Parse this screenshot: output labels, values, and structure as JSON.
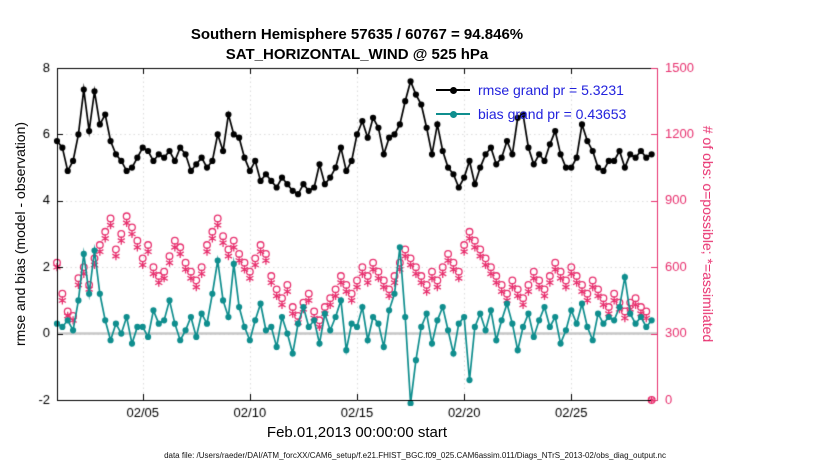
{
  "title": {
    "line1": "Southern Hemisphere 57635 / 60767 = 94.846%",
    "line2": "SAT_HORIZONTAL_WIND @ 525 hPa"
  },
  "legend": {
    "rmse": "rmse grand pr = 5.3231",
    "bias": "bias grand pr = 0.43653"
  },
  "axes": {
    "ylabel_left": "rmse and bias (model - observation)",
    "ylabel_right": "# of obs: o=possible; *=assimilated",
    "xlabel": "Feb.01,2013 00:00:00 start",
    "xtick_labels": [
      "02/05",
      "02/10",
      "02/15",
      "02/20",
      "02/25"
    ],
    "xtick_days": [
      5,
      10,
      15,
      20,
      25
    ],
    "yticks_left": [
      -2,
      0,
      2,
      4,
      6,
      8
    ],
    "yticks_right": [
      0,
      300,
      600,
      900,
      1200,
      1500
    ],
    "xlim": [
      1,
      29
    ],
    "ylim_left": [
      -2,
      8
    ],
    "ylim_right": [
      0,
      1500
    ]
  },
  "footer": {
    "datafile": "data file: /Users/raeder/DAI/ATM_forcXX/CAM6_setup/f.e21.FHIST_BGC.f09_025.CAM6assim.011/Diags_NTrS_2013-02/obs_diag_output.nc"
  },
  "colors": {
    "rmse": "#000000",
    "bias": "#0f8e8e",
    "obs": "#e8316f",
    "legend_text": "#2222dd",
    "zero_line": "#c8c8c8",
    "grid": "#dcdcdc",
    "axis": "#000000"
  },
  "chart_data": {
    "type": "line",
    "title": "Southern Hemisphere 57635 / 60767 = 94.846% | SAT_HORIZONTAL_WIND @ 525 hPa",
    "xlabel": "Feb.01,2013 00:00:00 start",
    "ylabel_left": "rmse and bias (model - observation)",
    "ylabel_right": "# of obs: o=possible; *=assimilated",
    "xlim_days": [
      1,
      29
    ],
    "ylim_left": [
      -2,
      8
    ],
    "ylim_right": [
      0,
      1500
    ],
    "grid": true,
    "legend_position": "top-right-inside",
    "x_start_day": 1.0,
    "x_step_days": 0.25,
    "series": [
      {
        "name": "rmse",
        "legend": "rmse grand pr = 5.3231",
        "axis": "left",
        "marker": "filled-circle",
        "color_key": "rmse",
        "values": [
          5.8,
          5.6,
          4.9,
          5.2,
          6.0,
          7.35,
          6.1,
          7.3,
          6.3,
          6.6,
          5.8,
          5.4,
          5.2,
          4.9,
          5.0,
          5.3,
          5.6,
          5.5,
          5.2,
          5.4,
          5.3,
          5.5,
          5.2,
          5.6,
          5.4,
          4.9,
          5.1,
          5.3,
          5.0,
          5.2,
          6.0,
          5.5,
          6.6,
          6.0,
          5.9,
          5.3,
          4.9,
          5.2,
          4.6,
          4.8,
          4.6,
          4.4,
          4.7,
          4.5,
          4.3,
          4.2,
          4.5,
          4.3,
          4.4,
          5.1,
          4.5,
          4.7,
          5.0,
          5.6,
          4.9,
          5.2,
          6.0,
          6.4,
          5.9,
          6.5,
          6.2,
          5.4,
          5.9,
          6.0,
          6.3,
          7.0,
          7.6,
          7.2,
          6.9,
          6.2,
          5.4,
          6.3,
          5.5,
          5.0,
          4.8,
          4.4,
          4.7,
          5.2,
          4.5,
          5.0,
          5.4,
          5.6,
          5.1,
          5.3,
          5.8,
          5.4,
          6.5,
          6.6,
          5.6,
          5.1,
          5.4,
          5.2,
          5.7,
          6.1,
          5.4,
          5.0,
          5.0,
          5.3,
          6.3,
          5.8,
          5.5,
          5.0,
          4.9,
          5.2,
          5.2,
          5.5,
          5.0,
          5.4,
          5.3,
          5.5,
          5.3,
          5.4
        ]
      },
      {
        "name": "bias",
        "legend": "bias grand pr = 0.43653",
        "axis": "left",
        "marker": "filled-circle",
        "color_key": "bias",
        "values": [
          0.3,
          0.2,
          0.4,
          0.1,
          1.0,
          2.4,
          1.2,
          2.5,
          1.2,
          0.4,
          -0.2,
          0.3,
          0.0,
          0.5,
          -0.3,
          0.2,
          0.2,
          -0.1,
          0.7,
          0.3,
          0.4,
          1.0,
          0.3,
          -0.2,
          0.1,
          0.5,
          -0.1,
          0.6,
          0.3,
          1.2,
          2.2,
          1.0,
          0.5,
          2.1,
          0.8,
          0.2,
          -0.2,
          0.4,
          0.9,
          0.1,
          0.2,
          -0.4,
          0.5,
          0.0,
          -0.6,
          0.3,
          0.8,
          0.2,
          0.4,
          -0.3,
          0.6,
          0.1,
          0.5,
          1.0,
          -0.5,
          0.3,
          0.2,
          0.8,
          -0.2,
          0.5,
          0.3,
          -0.4,
          0.7,
          1.2,
          2.6,
          0.5,
          -2.1,
          -0.8,
          0.2,
          0.6,
          -0.3,
          0.4,
          0.8,
          0.1,
          -0.6,
          0.3,
          0.5,
          -1.4,
          0.2,
          0.6,
          0.1,
          0.7,
          -0.2,
          0.4,
          0.9,
          0.3,
          -0.5,
          0.2,
          0.6,
          -0.1,
          0.4,
          0.8,
          0.2,
          0.5,
          -0.3,
          0.1,
          0.7,
          0.3,
          0.9,
          0.2,
          -0.2,
          0.6,
          0.3,
          0.5,
          0.4,
          0.8,
          1.7,
          0.6,
          0.3,
          0.5,
          0.2,
          0.4
        ]
      },
      {
        "name": "possible_obs",
        "legend": "o=possible",
        "axis": "right",
        "marker": "open-circle",
        "color_key": "obs",
        "values": [
          620,
          480,
          400,
          380,
          550,
          600,
          520,
          640,
          700,
          760,
          820,
          680,
          750,
          830,
          780,
          720,
          640,
          700,
          600,
          560,
          580,
          650,
          720,
          690,
          620,
          580,
          540,
          600,
          700,
          760,
          820,
          740,
          680,
          720,
          660,
          620,
          580,
          640,
          700,
          660,
          560,
          500,
          460,
          520,
          420,
          380,
          440,
          480,
          400,
          360,
          420,
          460,
          500,
          560,
          520,
          480,
          540,
          600,
          560,
          620,
          580,
          540,
          500,
          560,
          620,
          680,
          640,
          600,
          560,
          520,
          580,
          540,
          600,
          660,
          620,
          580,
          700,
          760,
          720,
          680,
          640,
          600,
          560,
          520,
          480,
          540,
          500,
          460,
          520,
          580,
          540,
          500,
          560,
          620,
          580,
          540,
          600,
          560,
          520,
          480,
          540,
          500,
          460,
          420,
          480,
          440,
          400,
          440,
          460,
          420,
          400,
          0
        ]
      },
      {
        "name": "assimilated_obs",
        "legend": "*=assimilated",
        "axis": "right",
        "marker": "asterisk",
        "color_key": "obs",
        "values": [
          600,
          450,
          380,
          360,
          520,
          570,
          500,
          610,
          670,
          730,
          790,
          650,
          720,
          800,
          750,
          690,
          610,
          670,
          570,
          530,
          550,
          620,
          690,
          660,
          590,
          550,
          510,
          570,
          670,
          730,
          790,
          710,
          650,
          690,
          630,
          590,
          550,
          610,
          670,
          630,
          530,
          470,
          430,
          490,
          390,
          350,
          410,
          450,
          370,
          330,
          390,
          430,
          470,
          530,
          490,
          450,
          510,
          570,
          530,
          590,
          550,
          510,
          470,
          530,
          590,
          650,
          610,
          570,
          530,
          490,
          550,
          510,
          570,
          630,
          590,
          550,
          670,
          730,
          690,
          650,
          610,
          570,
          530,
          490,
          450,
          510,
          470,
          430,
          490,
          550,
          510,
          470,
          530,
          590,
          550,
          510,
          570,
          530,
          490,
          450,
          510,
          470,
          430,
          390,
          450,
          410,
          370,
          410,
          430,
          390,
          370,
          0
        ]
      }
    ]
  }
}
